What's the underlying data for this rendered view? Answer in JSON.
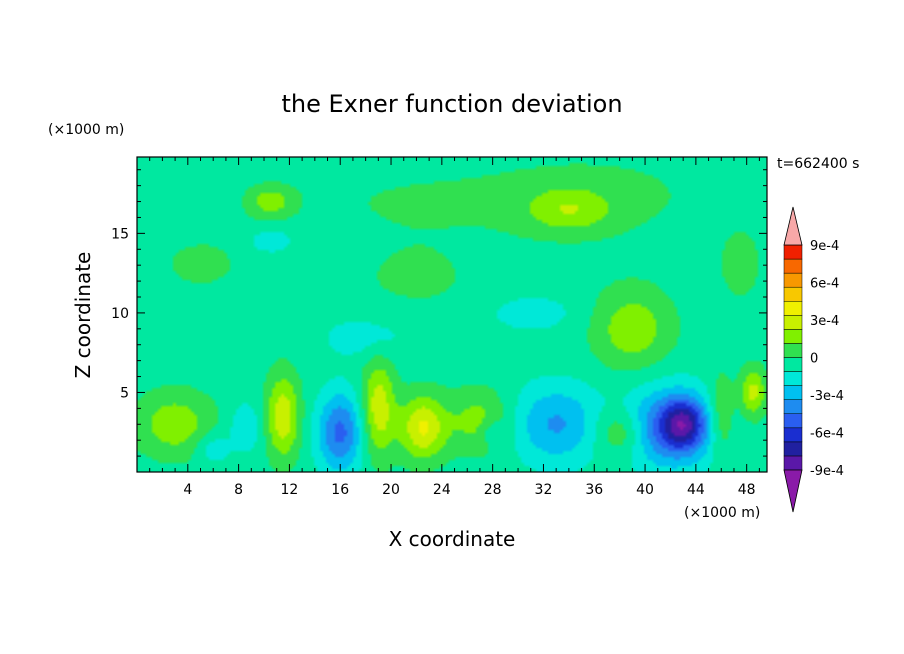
{
  "chart_data": {
    "type": "heatmap",
    "title": "the Exner function deviation",
    "xlabel": "X coordinate",
    "ylabel": "Z coordinate",
    "x_unit": "(×1000 m)",
    "y_unit": "(×1000 m)",
    "time_label": "t=662400 s",
    "xlim": [
      0,
      49.6
    ],
    "ylim": [
      0,
      19.8
    ],
    "x_ticks": [
      4,
      8,
      12,
      16,
      20,
      24,
      28,
      32,
      36,
      40,
      44,
      48
    ],
    "y_ticks": [
      5,
      10,
      15
    ],
    "colorbar": {
      "levels": [
        -0.0009,
        -0.0006,
        -0.0003,
        0,
        0.0003,
        0.0006,
        0.0009
      ],
      "labels": [
        "-9e-4",
        "-6e-4",
        "-3e-4",
        "0",
        "3e-4",
        "6e-4",
        "9e-4"
      ],
      "colors": [
        "#5a18a8",
        "#2020a0",
        "#1a2ed0",
        "#2a5ef0",
        "#1e8cf0",
        "#00c0f0",
        "#00e8d8",
        "#00e8a0",
        "#30e050",
        "#80f000",
        "#c8f000",
        "#f0f000",
        "#f8c800",
        "#f89800",
        "#f86800",
        "#f02000"
      ],
      "under_color": "#8a1aa8",
      "over_color": "#f8a8a8"
    },
    "field_base_value": -5e-05,
    "features": [
      {
        "x": 21,
        "z": 17,
        "sx": 12,
        "sz": 3,
        "value": 5e-05
      },
      {
        "x": 37,
        "z": 17.5,
        "sx": 10,
        "sz": 3,
        "value": 6e-05
      },
      {
        "x": 34,
        "z": 16.5,
        "sx": 3.5,
        "sz": 1.4,
        "value": 0.00022
      },
      {
        "x": 10.5,
        "z": 17,
        "sx": 1.6,
        "sz": 0.9,
        "value": 0.00022
      },
      {
        "x": 10.5,
        "z": 14.5,
        "sx": 1.8,
        "sz": 0.8,
        "value": -0.00017
      },
      {
        "x": 5,
        "z": 13,
        "sx": 5,
        "sz": 2.5,
        "value": 6e-05
      },
      {
        "x": 22,
        "z": 12,
        "sx": 6,
        "sz": 2.5,
        "value": 6e-05
      },
      {
        "x": 39,
        "z": 9,
        "sx": 3,
        "sz": 2.5,
        "value": 0.00024
      },
      {
        "x": 31,
        "z": 10,
        "sx": 3.5,
        "sz": 1.2,
        "value": -0.00013
      },
      {
        "x": 18,
        "z": 8.5,
        "sx": 3.5,
        "sz": 1.4,
        "value": -0.00013
      },
      {
        "x": 47.5,
        "z": 13,
        "sx": 1.5,
        "sz": 2,
        "value": 0.00012
      },
      {
        "x": 3,
        "z": 3,
        "sx": 3,
        "sz": 2,
        "value": 0.00024
      },
      {
        "x": 6,
        "z": 1.5,
        "sx": 1.3,
        "sz": 1,
        "value": -0.00016
      },
      {
        "x": 8.5,
        "z": 2.8,
        "sx": 1.2,
        "sz": 1.5,
        "value": -0.00018
      },
      {
        "x": 11.5,
        "z": 3.5,
        "sx": 1.3,
        "sz": 2.6,
        "value": 0.00036
      },
      {
        "x": 16,
        "z": 2.5,
        "sx": 1.8,
        "sz": 2.5,
        "value": -0.00043
      },
      {
        "x": 19,
        "z": 4,
        "sx": 1.3,
        "sz": 3,
        "value": 0.00036
      },
      {
        "x": 22.5,
        "z": 2.8,
        "sx": 1.8,
        "sz": 2,
        "value": 0.0004
      },
      {
        "x": 27,
        "z": 3.2,
        "sx": 2.5,
        "sz": 2,
        "value": 0.00022
      },
      {
        "x": 28,
        "z": 2.5,
        "sx": 1,
        "sz": 0.8,
        "value": -0.00016
      },
      {
        "x": 33,
        "z": 3,
        "sx": 3.5,
        "sz": 2.5,
        "value": -0.0003
      },
      {
        "x": 38,
        "z": 2.5,
        "sx": 2,
        "sz": 1.5,
        "value": 0.00024
      },
      {
        "x": 42,
        "z": 2.8,
        "sx": 3.5,
        "sz": 2.5,
        "value": -0.00045
      },
      {
        "x": 43,
        "z": 3,
        "sx": 1.6,
        "sz": 1.5,
        "value": -0.00045
      },
      {
        "x": 46,
        "z": 3.5,
        "sx": 1,
        "sz": 2.5,
        "value": 0.00022
      },
      {
        "x": 48.5,
        "z": 5,
        "sx": 1,
        "sz": 1.5,
        "value": 0.00032
      }
    ]
  }
}
